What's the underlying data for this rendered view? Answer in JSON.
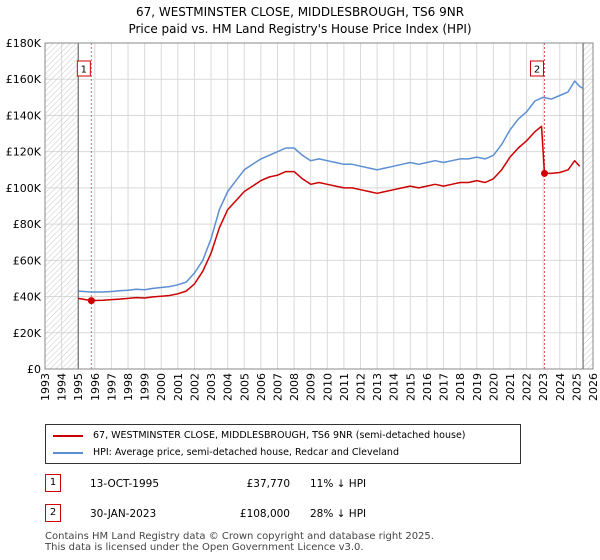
{
  "chart_data": {
    "type": "line",
    "title": "67, WESTMINSTER CLOSE, MIDDLESBROUGH, TS6 9NR",
    "subtitle": "Price paid vs. HM Land Registry's House Price Index (HPI)",
    "xlim": [
      1993,
      2026
    ],
    "ylim": [
      0,
      180000
    ],
    "x_ticks": [
      1993,
      1994,
      1995,
      1996,
      1997,
      1998,
      1999,
      2000,
      2001,
      2002,
      2003,
      2004,
      2005,
      2006,
      2007,
      2008,
      2009,
      2010,
      2011,
      2012,
      2013,
      2014,
      2015,
      2016,
      2017,
      2018,
      2019,
      2020,
      2021,
      2022,
      2023,
      2024,
      2025,
      2026
    ],
    "y_ticks": [
      0,
      20000,
      40000,
      60000,
      80000,
      100000,
      120000,
      140000,
      160000,
      180000
    ],
    "y_tick_labels": [
      "£0",
      "£20K",
      "£40K",
      "£60K",
      "£80K",
      "£100K",
      "£120K",
      "£140K",
      "£160K",
      "£180K"
    ],
    "grid": true,
    "data_range": [
      1995.0,
      2025.4
    ],
    "series": [
      {
        "name": "HPI: Average price, semi-detached house, Redcar and Cleveland",
        "color": "#5b8fd4",
        "x": [
          1995.0,
          1995.8,
          1996.5,
          1997.0,
          1997.5,
          1998.0,
          1998.5,
          1999.0,
          1999.5,
          2000.0,
          2000.5,
          2001.0,
          2001.5,
          2002.0,
          2002.5,
          2003.0,
          2003.5,
          2004.0,
          2004.5,
          2005.0,
          2005.5,
          2006.0,
          2006.5,
          2007.0,
          2007.5,
          2008.0,
          2008.5,
          2009.0,
          2009.5,
          2010.0,
          2010.5,
          2011.0,
          2011.5,
          2012.0,
          2012.5,
          2013.0,
          2013.5,
          2014.0,
          2014.5,
          2015.0,
          2015.5,
          2016.0,
          2016.5,
          2017.0,
          2017.5,
          2018.0,
          2018.5,
          2019.0,
          2019.5,
          2020.0,
          2020.5,
          2021.0,
          2021.5,
          2022.0,
          2022.5,
          2023.0,
          2023.5,
          2024.0,
          2024.5,
          2024.9,
          2025.2,
          2025.4
        ],
        "y": [
          43000,
          42500,
          42500,
          42800,
          43200,
          43500,
          44000,
          43800,
          44500,
          45000,
          45500,
          46500,
          48000,
          53000,
          60000,
          72000,
          88000,
          98000,
          104000,
          110000,
          113000,
          116000,
          118000,
          120000,
          122000,
          122000,
          118000,
          115000,
          116000,
          115000,
          114000,
          113000,
          113000,
          112000,
          111000,
          110000,
          111000,
          112000,
          113000,
          114000,
          113000,
          114000,
          115000,
          114000,
          115000,
          116000,
          116000,
          117000,
          116000,
          118000,
          124000,
          132000,
          138000,
          142000,
          148000,
          150000,
          149000,
          151000,
          153000,
          159000,
          156000,
          155000
        ]
      },
      {
        "name": "67, WESTMINSTER CLOSE, MIDDLESBROUGH, TS6 9NR (semi-detached house)",
        "color": "#cc0000",
        "x": [
          1995.0,
          1995.79,
          1996.5,
          1997.0,
          1997.5,
          1998.0,
          1998.5,
          1999.0,
          1999.5,
          2000.0,
          2000.5,
          2001.0,
          2001.5,
          2002.0,
          2002.5,
          2003.0,
          2003.5,
          2004.0,
          2004.5,
          2005.0,
          2005.5,
          2006.0,
          2006.5,
          2007.0,
          2007.5,
          2008.0,
          2008.5,
          2009.0,
          2009.5,
          2010.0,
          2010.5,
          2011.0,
          2011.5,
          2012.0,
          2012.5,
          2013.0,
          2013.5,
          2014.0,
          2014.5,
          2015.0,
          2015.5,
          2016.0,
          2016.5,
          2017.0,
          2017.5,
          2018.0,
          2018.5,
          2019.0,
          2019.5,
          2020.0,
          2020.5,
          2021.0,
          2021.5,
          2022.0,
          2022.5,
          2022.9,
          2023.08,
          2023.5,
          2024.0,
          2024.5,
          2024.9,
          2025.2
        ],
        "y": [
          39000,
          37770,
          38000,
          38300,
          38600,
          39000,
          39400,
          39200,
          39800,
          40200,
          40600,
          41500,
          43000,
          47000,
          54000,
          64000,
          78000,
          88000,
          93000,
          98000,
          101000,
          104000,
          106000,
          107000,
          109000,
          109000,
          105000,
          102000,
          103000,
          102000,
          101000,
          100000,
          100000,
          99000,
          98000,
          97000,
          98000,
          99000,
          100000,
          101000,
          100000,
          101000,
          102000,
          101000,
          102000,
          103000,
          103000,
          104000,
          103000,
          105000,
          110000,
          117000,
          122000,
          126000,
          131000,
          134000,
          108000,
          108000,
          108500,
          110000,
          115000,
          112000
        ]
      }
    ],
    "annotations": [
      {
        "label": "1",
        "x": 1995.79,
        "y": 37770
      },
      {
        "label": "2",
        "x": 2023.08,
        "y": 108000
      }
    ]
  },
  "legend": {
    "items": [
      {
        "label": "67, WESTMINSTER CLOSE, MIDDLESBROUGH, TS6 9NR (semi-detached house)",
        "color": "#cc0000"
      },
      {
        "label": "HPI: Average price, semi-detached house, Redcar and Cleveland",
        "color": "#5b8fd4"
      }
    ]
  },
  "transactions": [
    {
      "num": "1",
      "date": "13-OCT-1995",
      "price": "£37,770",
      "hpi": "11% ↓ HPI"
    },
    {
      "num": "2",
      "date": "30-JAN-2023",
      "price": "£108,000",
      "hpi": "28% ↓ HPI"
    }
  ],
  "footer": {
    "line1": "Contains HM Land Registry data © Crown copyright and database right 2025.",
    "line2": "This data is licensed under the Open Government Licence v3.0."
  }
}
